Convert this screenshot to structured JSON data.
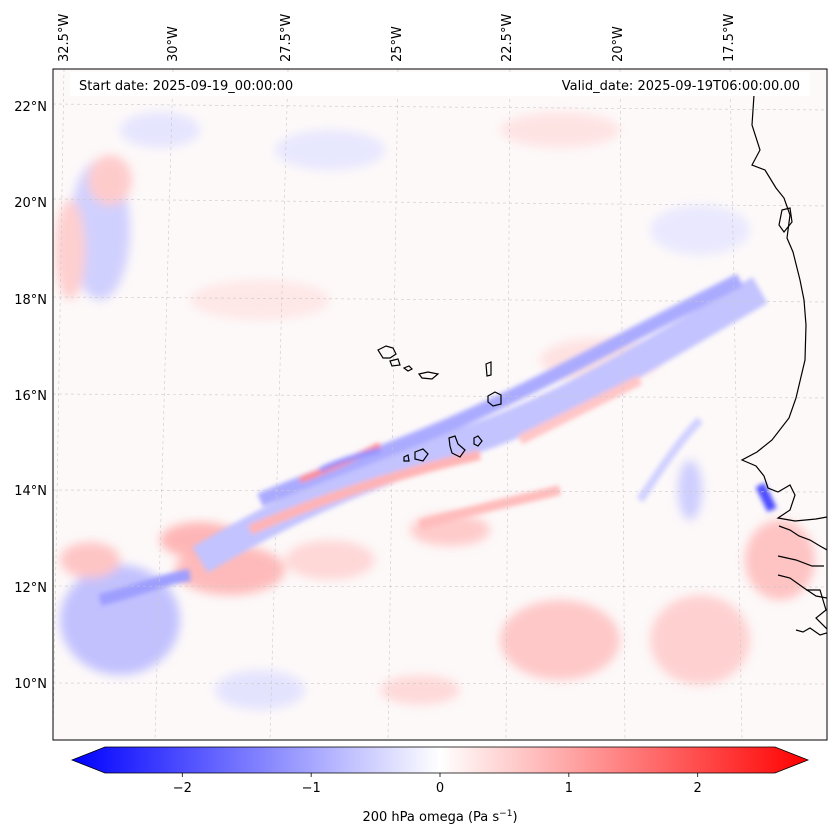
{
  "header": {
    "start_date": "Start date: 2025-09-19_00:00:00",
    "valid_date": "Valid_date: 2025-09-19T06:00:00.00"
  },
  "axes": {
    "lon_labels": [
      "32.5°W",
      "30°W",
      "27.5°W",
      "25°W",
      "22.5°W",
      "20°W",
      "17.5°W"
    ],
    "lat_labels": [
      "22°N",
      "20°N",
      "18°N",
      "16°N",
      "14°N",
      "12°N",
      "10°N"
    ]
  },
  "colorbar": {
    "tick_labels": [
      "−2",
      "−1",
      "0",
      "1",
      "2"
    ],
    "tick_values": [
      -2,
      -1,
      0,
      1,
      2
    ],
    "range": [
      -2.6,
      2.6
    ],
    "label_text": "200 hPa omega (Pa s",
    "label_superscript": "−1",
    "label_suffix": ")",
    "colors": {
      "negative": "#0000ff",
      "zero": "#ffffff",
      "positive": "#ff0000"
    }
  },
  "chart_data": {
    "type": "heatmap",
    "variable": "200 hPa omega",
    "units": "Pa s−1",
    "lon_range": [
      -33,
      -16
    ],
    "lat_range": [
      9,
      22.5
    ],
    "lon_ticks": [
      -32.5,
      -30,
      -27.5,
      -25,
      -22.5,
      -20,
      -17.5
    ],
    "lat_ticks": [
      22,
      20,
      18,
      16,
      14,
      12,
      10
    ],
    "color_range": [
      -2.6,
      2.6
    ],
    "colormap": "bwr"
  },
  "colors": {
    "coastline": "#000000",
    "gridline": "#c8c8c8",
    "pos_light": "#ffd6d6",
    "pos_mid": "#ff9a9a",
    "neg_light": "#dcdcff",
    "neg_mid": "#9a9aff"
  }
}
